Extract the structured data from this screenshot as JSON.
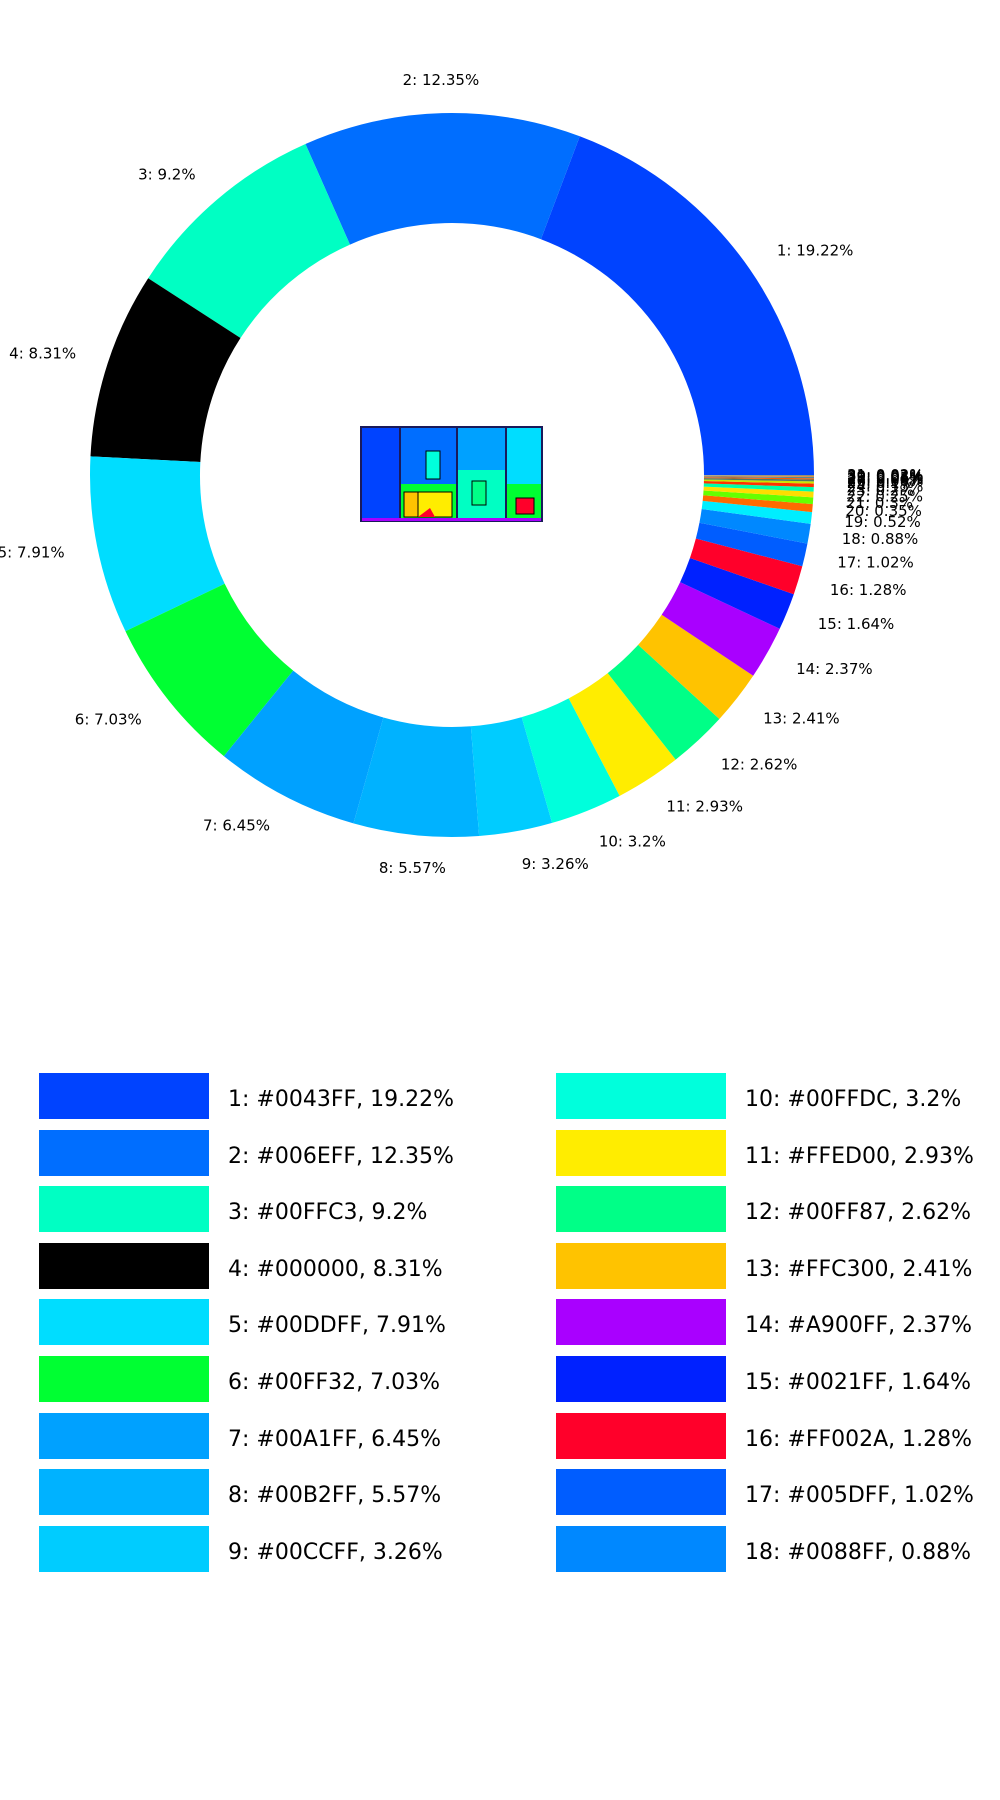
{
  "chart_data": {
    "type": "pie",
    "donut": true,
    "slices": [
      {
        "id": 1,
        "label": "1: 19.22%",
        "color": "#0043FF",
        "value": 19.22,
        "legend": "1: #0043FF, 19.22%"
      },
      {
        "id": 2,
        "label": "2: 12.35%",
        "color": "#006EFF",
        "value": 12.35,
        "legend": "2: #006EFF, 12.35%"
      },
      {
        "id": 3,
        "label": "3: 9.2%",
        "color": "#00FFC3",
        "value": 9.2,
        "legend": "3: #00FFC3, 9.2%"
      },
      {
        "id": 4,
        "label": "4: 8.31%",
        "color": "#000000",
        "value": 8.31,
        "legend": "4: #000000, 8.31%"
      },
      {
        "id": 5,
        "label": "5: 7.91%",
        "color": "#00DDFF",
        "value": 7.91,
        "legend": "5: #00DDFF, 7.91%"
      },
      {
        "id": 6,
        "label": "6: 7.03%",
        "color": "#00FF32",
        "value": 7.03,
        "legend": "6: #00FF32, 7.03%"
      },
      {
        "id": 7,
        "label": "7: 6.45%",
        "color": "#00A1FF",
        "value": 6.45,
        "legend": "7: #00A1FF, 6.45%"
      },
      {
        "id": 8,
        "label": "8: 5.57%",
        "color": "#00B2FF",
        "value": 5.57,
        "legend": "8: #00B2FF, 5.57%"
      },
      {
        "id": 9,
        "label": "9: 3.26%",
        "color": "#00CCFF",
        "value": 3.26,
        "legend": "9: #00CCFF, 3.26%"
      },
      {
        "id": 10,
        "label": "10: 3.2%",
        "color": "#00FFDC",
        "value": 3.2,
        "legend": "10: #00FFDC, 3.2%"
      },
      {
        "id": 11,
        "label": "11: 2.93%",
        "color": "#FFED00",
        "value": 2.93,
        "legend": "11: #FFED00, 2.93%"
      },
      {
        "id": 12,
        "label": "12: 2.62%",
        "color": "#00FF87",
        "value": 2.62,
        "legend": "12: #00FF87, 2.62%"
      },
      {
        "id": 13,
        "label": "13: 2.41%",
        "color": "#FFC300",
        "value": 2.41,
        "legend": "13: #FFC300, 2.41%"
      },
      {
        "id": 14,
        "label": "14: 2.37%",
        "color": "#A900FF",
        "value": 2.37,
        "legend": "14: #A900FF, 2.37%"
      },
      {
        "id": 15,
        "label": "15: 1.64%",
        "color": "#0021FF",
        "value": 1.64,
        "legend": "15: #0021FF, 1.64%"
      },
      {
        "id": 16,
        "label": "16: 1.28%",
        "color": "#FF002A",
        "value": 1.28,
        "legend": "16: #FF002A, 1.28%"
      },
      {
        "id": 17,
        "label": "17: 1.02%",
        "color": "#005DFF",
        "value": 1.02,
        "legend": "17: #005DFF, 1.02%"
      },
      {
        "id": 18,
        "label": "18: 0.88%",
        "color": "#0088FF",
        "value": 0.88,
        "legend": "18: #0088FF, 0.88%"
      },
      {
        "id": 19,
        "label": "19: 0.52%",
        "color": "#00EEFF",
        "value": 0.52
      },
      {
        "id": 20,
        "label": "20: 0.35%",
        "color": "#FF6A00",
        "value": 0.35
      },
      {
        "id": 21,
        "label": "21: 0.3%",
        "color": "#66FF00",
        "value": 0.3
      },
      {
        "id": 22,
        "label": "22: 0.25%",
        "color": "#FFDD00",
        "value": 0.25
      },
      {
        "id": 23,
        "label": "23: 0.2%",
        "color": "#00FFAA",
        "value": 0.2
      },
      {
        "id": 24,
        "label": "24: 0.15%",
        "color": "#FF3300",
        "value": 0.15
      },
      {
        "id": 25,
        "label": "25: 0.1%",
        "color": "#C8E600",
        "value": 0.1
      },
      {
        "id": 26,
        "label": "26: 0.08%",
        "color": "#4A7A60",
        "value": 0.08
      },
      {
        "id": 27,
        "label": "27: 0.06%",
        "color": "#FF5500",
        "value": 0.06
      },
      {
        "id": 28,
        "label": "28: 0.05%",
        "color": "#5A8C8C",
        "value": 0.05
      },
      {
        "id": 29,
        "label": "29: 0.04%",
        "color": "#E08040",
        "value": 0.04
      },
      {
        "id": 30,
        "label": "30: 0.03%",
        "color": "#808040",
        "value": 0.03
      },
      {
        "id": 31,
        "label": "31: 0.02%",
        "color": "#A0A0A0",
        "value": 0.02
      }
    ]
  }
}
